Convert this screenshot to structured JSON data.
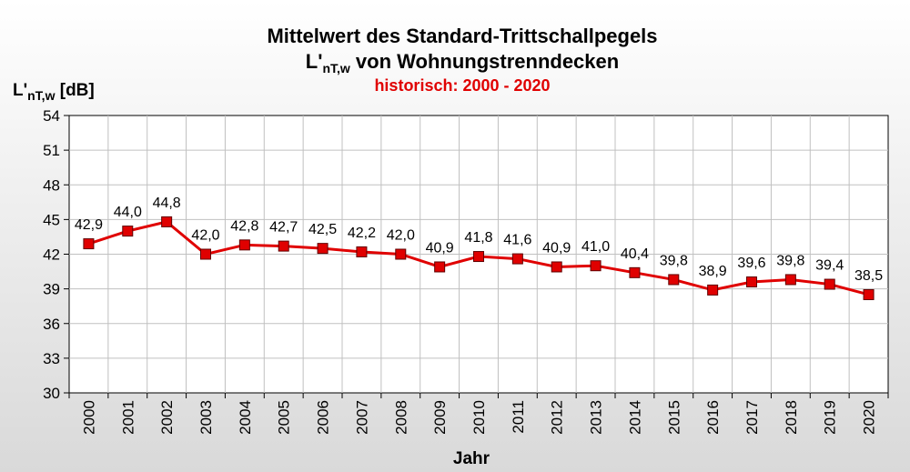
{
  "chart_data": {
    "type": "line",
    "title": "Mittelwert des Standard-Trittschallpegels",
    "title2_main": "L'",
    "title2_sub": "nT,w",
    "title2_rest": " von Wohnungstrenndecken",
    "subtitle": "historisch: 2000 - 2020",
    "ylabel_main": "L'",
    "ylabel_sub": "nT,w",
    "ylabel_rest": " [dB]",
    "xlabel": "Jahr",
    "ylim": [
      30,
      54
    ],
    "yticks": [
      30,
      33,
      36,
      39,
      42,
      45,
      48,
      51,
      54
    ],
    "grid": true,
    "categories": [
      "2000",
      "2001",
      "2002",
      "2003",
      "2004",
      "2005",
      "2006",
      "2007",
      "2008",
      "2009",
      "2010",
      "2011",
      "2012",
      "2013",
      "2014",
      "2015",
      "2016",
      "2017",
      "2018",
      "2019",
      "2020"
    ],
    "values": [
      42.9,
      44.0,
      44.8,
      42.0,
      42.8,
      42.7,
      42.5,
      42.2,
      42.0,
      40.9,
      41.8,
      41.6,
      40.9,
      41.0,
      40.4,
      39.8,
      38.9,
      39.6,
      39.8,
      39.4,
      38.5
    ],
    "data_labels": [
      "42,9",
      "44,0",
      "44,8",
      "42,0",
      "42,8",
      "42,7",
      "42,5",
      "42,2",
      "42,0",
      "40,9",
      "41,8",
      "41,6",
      "40,9",
      "41,0",
      "40,4",
      "39,8",
      "38,9",
      "39,6",
      "39,8",
      "39,4",
      "38,5"
    ],
    "line_color": "#e00000",
    "marker_color": "#e00000",
    "grid_color": "#c0c0c0"
  }
}
